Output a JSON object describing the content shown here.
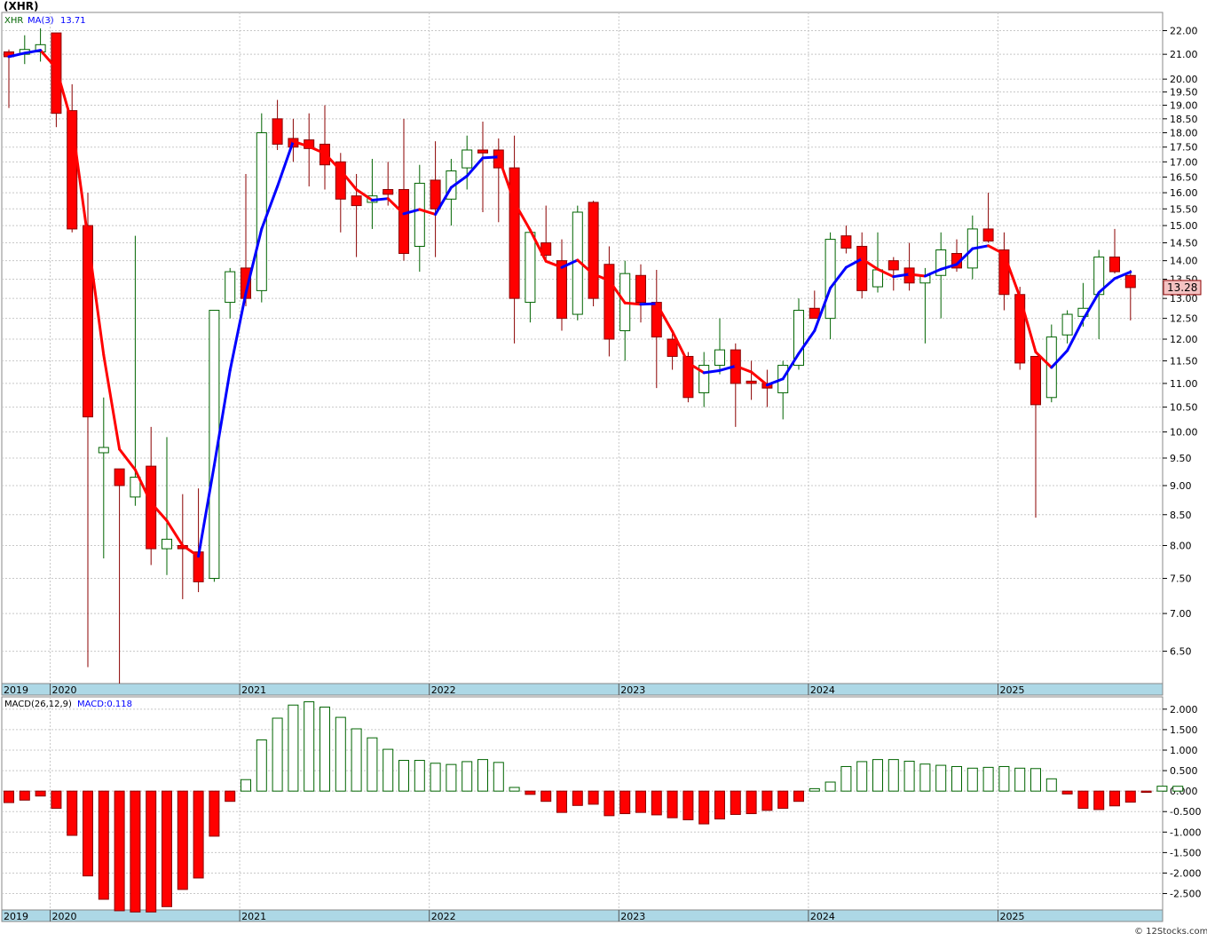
{
  "chart_data": [
    {
      "type": "candlestick",
      "symbol_label": "(XHR)",
      "ticker": "XHR",
      "ma_label": "MA(3)",
      "ma_value_label": "13.71",
      "last_price_label": "13.28",
      "scale": "log",
      "ylim": [
        6.1,
        22.8
      ],
      "y_ticks": [
        6.5,
        7.0,
        7.5,
        8.0,
        8.5,
        9.0,
        9.5,
        10.0,
        10.5,
        11.0,
        11.5,
        12.0,
        12.5,
        13.0,
        13.5,
        14.0,
        14.5,
        15.0,
        15.5,
        16.0,
        16.5,
        17.0,
        17.5,
        18.0,
        18.5,
        19.0,
        19.5,
        20.0,
        21.0,
        22.0
      ],
      "year_labels": [
        "2019",
        "2020",
        "2021",
        "2022",
        "2023",
        "2024",
        "2025"
      ],
      "grid": true,
      "bars": [
        {
          "o": 21.1,
          "h": 21.2,
          "l": 18.9,
          "c": 20.9
        },
        {
          "o": 21.0,
          "h": 21.8,
          "l": 20.6,
          "c": 21.2
        },
        {
          "o": 21.1,
          "h": 22.1,
          "l": 20.7,
          "c": 21.4
        },
        {
          "o": 21.9,
          "h": 21.9,
          "l": 18.2,
          "c": 18.7
        },
        {
          "o": 18.8,
          "h": 19.8,
          "l": 14.8,
          "c": 14.9
        },
        {
          "o": 15.0,
          "h": 16.0,
          "l": 6.3,
          "c": 10.3
        },
        {
          "o": 9.6,
          "h": 10.7,
          "l": 7.8,
          "c": 9.7
        },
        {
          "o": 9.3,
          "h": 9.3,
          "l": 6.1,
          "c": 9.0
        },
        {
          "o": 8.8,
          "h": 14.7,
          "l": 8.65,
          "c": 9.15
        },
        {
          "o": 9.35,
          "h": 10.1,
          "l": 7.7,
          "c": 7.95
        },
        {
          "o": 7.95,
          "h": 9.9,
          "l": 7.55,
          "c": 8.1
        },
        {
          "o": 8.0,
          "h": 8.85,
          "l": 7.2,
          "c": 7.95
        },
        {
          "o": 7.9,
          "h": 8.95,
          "l": 7.3,
          "c": 7.45
        },
        {
          "o": 7.5,
          "h": 12.7,
          "l": 7.45,
          "c": 12.7
        },
        {
          "o": 12.9,
          "h": 13.8,
          "l": 12.5,
          "c": 13.7
        },
        {
          "o": 13.8,
          "h": 16.6,
          "l": 12.8,
          "c": 13.0
        },
        {
          "o": 13.2,
          "h": 18.7,
          "l": 12.9,
          "c": 18.0
        },
        {
          "o": 18.5,
          "h": 19.2,
          "l": 17.4,
          "c": 17.6
        },
        {
          "o": 17.8,
          "h": 18.5,
          "l": 17.0,
          "c": 17.5
        },
        {
          "o": 17.75,
          "h": 18.7,
          "l": 16.2,
          "c": 17.45
        },
        {
          "o": 17.6,
          "h": 19.0,
          "l": 16.1,
          "c": 16.9
        },
        {
          "o": 17.0,
          "h": 17.3,
          "l": 14.8,
          "c": 15.8
        },
        {
          "o": 15.9,
          "h": 16.6,
          "l": 14.1,
          "c": 15.6
        },
        {
          "o": 15.7,
          "h": 17.1,
          "l": 14.9,
          "c": 15.9
        },
        {
          "o": 16.1,
          "h": 17.0,
          "l": 15.6,
          "c": 15.95
        },
        {
          "o": 16.1,
          "h": 18.5,
          "l": 14.0,
          "c": 14.2
        },
        {
          "o": 14.4,
          "h": 16.9,
          "l": 13.7,
          "c": 16.3
        },
        {
          "o": 16.4,
          "h": 17.7,
          "l": 14.1,
          "c": 15.5
        },
        {
          "o": 15.8,
          "h": 17.1,
          "l": 15.0,
          "c": 16.7
        },
        {
          "o": 16.8,
          "h": 17.9,
          "l": 16.1,
          "c": 17.4
        },
        {
          "o": 17.4,
          "h": 18.4,
          "l": 15.4,
          "c": 17.3
        },
        {
          "o": 17.4,
          "h": 17.8,
          "l": 15.1,
          "c": 16.8
        },
        {
          "o": 16.8,
          "h": 17.9,
          "l": 11.9,
          "c": 13.0
        },
        {
          "o": 12.9,
          "h": 14.8,
          "l": 12.4,
          "c": 14.8
        },
        {
          "o": 14.5,
          "h": 15.6,
          "l": 14.0,
          "c": 14.15
        },
        {
          "o": 14.0,
          "h": 14.6,
          "l": 12.2,
          "c": 12.5
        },
        {
          "o": 12.6,
          "h": 15.6,
          "l": 12.45,
          "c": 15.4
        },
        {
          "o": 15.7,
          "h": 15.75,
          "l": 12.8,
          "c": 13.0
        },
        {
          "o": 13.9,
          "h": 14.4,
          "l": 11.6,
          "c": 12.0
        },
        {
          "o": 12.2,
          "h": 14.0,
          "l": 11.5,
          "c": 13.65
        },
        {
          "o": 13.6,
          "h": 13.9,
          "l": 12.4,
          "c": 12.9
        },
        {
          "o": 12.9,
          "h": 13.75,
          "l": 10.9,
          "c": 12.05
        },
        {
          "o": 12.0,
          "h": 12.2,
          "l": 11.3,
          "c": 11.6
        },
        {
          "o": 11.6,
          "h": 11.7,
          "l": 10.6,
          "c": 10.7
        },
        {
          "o": 10.8,
          "h": 11.7,
          "l": 10.5,
          "c": 11.4
        },
        {
          "o": 11.4,
          "h": 12.5,
          "l": 11.2,
          "c": 11.75
        },
        {
          "o": 11.75,
          "h": 11.9,
          "l": 10.1,
          "c": 11.0
        },
        {
          "o": 11.05,
          "h": 11.5,
          "l": 10.65,
          "c": 11.0
        },
        {
          "o": 11.0,
          "h": 11.3,
          "l": 10.5,
          "c": 10.9
        },
        {
          "o": 10.8,
          "h": 11.5,
          "l": 10.25,
          "c": 11.4
        },
        {
          "o": 11.4,
          "h": 13.0,
          "l": 11.3,
          "c": 12.7
        },
        {
          "o": 12.75,
          "h": 13.2,
          "l": 12.5,
          "c": 12.5
        },
        {
          "o": 12.5,
          "h": 14.8,
          "l": 12.0,
          "c": 14.6
        },
        {
          "o": 14.7,
          "h": 15.0,
          "l": 14.2,
          "c": 14.35
        },
        {
          "o": 14.4,
          "h": 14.8,
          "l": 13.0,
          "c": 13.2
        },
        {
          "o": 13.3,
          "h": 14.8,
          "l": 13.15,
          "c": 13.75
        },
        {
          "o": 14.0,
          "h": 14.1,
          "l": 13.2,
          "c": 13.75
        },
        {
          "o": 13.8,
          "h": 14.5,
          "l": 13.2,
          "c": 13.4
        },
        {
          "o": 13.4,
          "h": 13.8,
          "l": 11.9,
          "c": 13.6
        },
        {
          "o": 13.6,
          "h": 14.8,
          "l": 12.5,
          "c": 14.3
        },
        {
          "o": 14.2,
          "h": 14.6,
          "l": 13.7,
          "c": 13.8
        },
        {
          "o": 13.8,
          "h": 15.3,
          "l": 13.5,
          "c": 14.9
        },
        {
          "o": 14.9,
          "h": 16.0,
          "l": 14.5,
          "c": 14.55
        },
        {
          "o": 14.3,
          "h": 14.8,
          "l": 12.7,
          "c": 13.1
        },
        {
          "o": 13.1,
          "h": 13.3,
          "l": 11.3,
          "c": 11.45
        },
        {
          "o": 11.6,
          "h": 11.6,
          "l": 8.45,
          "c": 10.55
        },
        {
          "o": 10.7,
          "h": 12.35,
          "l": 10.6,
          "c": 12.05
        },
        {
          "o": 12.1,
          "h": 12.7,
          "l": 11.9,
          "c": 12.6
        },
        {
          "o": 12.55,
          "h": 13.4,
          "l": 12.3,
          "c": 12.75
        },
        {
          "o": 13.1,
          "h": 14.3,
          "l": 12.0,
          "c": 14.1
        },
        {
          "o": 14.1,
          "h": 14.9,
          "l": 13.65,
          "c": 13.7
        },
        {
          "o": 13.6,
          "h": 13.75,
          "l": 12.45,
          "c": 13.28
        }
      ]
    },
    {
      "type": "bar",
      "title": "MACD(26,12,9)",
      "value_label": "MACD:0.118",
      "ylim": [
        -2.9,
        2.3
      ],
      "y_ticks": [
        -2.5,
        -2.0,
        -1.5,
        -1.0,
        -0.5,
        0.0,
        0.5,
        1.0,
        1.5,
        2.0
      ],
      "y_tick_labels": [
        "-2.500",
        "-2.000",
        "-1.500",
        "-1.000",
        "-0.500",
        "0.000",
        "0.500",
        "1.000",
        "1.500",
        "2.000"
      ],
      "year_labels": [
        "2019",
        "2020",
        "2021",
        "2022",
        "2023",
        "2024",
        "2025"
      ],
      "values": [
        -0.28,
        -0.22,
        -0.12,
        -0.42,
        -1.08,
        -2.07,
        -2.64,
        -2.92,
        -2.95,
        -2.95,
        -2.82,
        -2.4,
        -2.12,
        -1.1,
        -0.25,
        0.28,
        1.25,
        1.78,
        2.1,
        2.18,
        2.05,
        1.8,
        1.52,
        1.3,
        1.02,
        0.75,
        0.75,
        0.68,
        0.65,
        0.72,
        0.77,
        0.7,
        0.09,
        -0.08,
        -0.25,
        -0.52,
        -0.35,
        -0.32,
        -0.6,
        -0.55,
        -0.52,
        -0.58,
        -0.65,
        -0.7,
        -0.8,
        -0.68,
        -0.57,
        -0.55,
        -0.47,
        -0.42,
        -0.25,
        0.06,
        0.22,
        0.6,
        0.72,
        0.77,
        0.77,
        0.73,
        0.66,
        0.63,
        0.6,
        0.56,
        0.58,
        0.6,
        0.56,
        0.55,
        0.3,
        -0.07,
        -0.42,
        -0.45,
        -0.36,
        -0.27,
        -0.03,
        0.12,
        0.118
      ]
    }
  ],
  "footer": {
    "copyright": "© 12Stocks.com"
  }
}
